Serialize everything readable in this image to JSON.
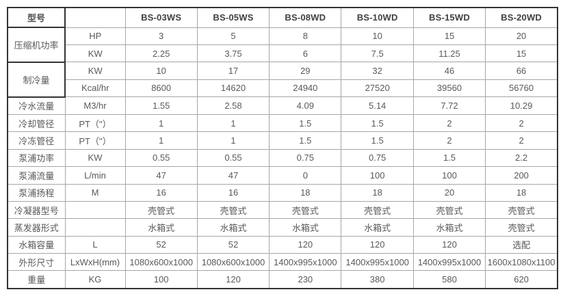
{
  "table": {
    "header": {
      "model_label": "型号",
      "unit_label": "",
      "models": [
        "BS-03WS",
        "BS-05WS",
        "BS-08WD",
        "BS-10WD",
        "BS-15WD",
        "BS-20WD"
      ]
    },
    "rows": [
      {
        "label": "压缩机功率",
        "rowspan": 2,
        "heavy": true,
        "unit": "HP",
        "values": [
          "3",
          "5",
          "8",
          "10",
          "15",
          "20"
        ]
      },
      {
        "unit": "KW",
        "values": [
          "2.25",
          "3.75",
          "6",
          "7.5",
          "11.25",
          "15"
        ]
      },
      {
        "label": "制冷量",
        "rowspan": 2,
        "heavy": true,
        "unit": "KW",
        "values": [
          "10",
          "17",
          "29",
          "32",
          "46",
          "66"
        ]
      },
      {
        "unit": "Kcal/hr",
        "values": [
          "8600",
          "14620",
          "24940",
          "27520",
          "39560",
          "56760"
        ]
      },
      {
        "label": "冷水流量",
        "unit": "M3/hr",
        "values": [
          "1.55",
          "2.58",
          "4.09",
          "5.14",
          "7.72",
          "10.29"
        ]
      },
      {
        "label": "冷却管径",
        "unit": "PT（\"）",
        "values": [
          "1",
          "1",
          "1.5",
          "1.5",
          "2",
          "2"
        ]
      },
      {
        "label": "冷冻管径",
        "unit": "PT（\"）",
        "values": [
          "1",
          "1",
          "1.5",
          "1.5",
          "2",
          "2"
        ]
      },
      {
        "label": "泵浦功率",
        "unit": "KW",
        "values": [
          "0.55",
          "0.55",
          "0.75",
          "0.75",
          "1.5",
          "2.2"
        ]
      },
      {
        "label": "泵浦流量",
        "unit": "L/min",
        "values": [
          "47",
          "47",
          "0",
          "100",
          "100",
          "200"
        ]
      },
      {
        "label": "泵浦扬程",
        "unit": "M",
        "values": [
          "16",
          "16",
          "18",
          "18",
          "20",
          "18"
        ]
      },
      {
        "label": "冷凝器型号",
        "unit": "",
        "values": [
          "壳管式",
          "壳管式",
          "壳管式",
          "壳管式",
          "壳管式",
          "壳管式"
        ]
      },
      {
        "label": "蒸发器形式",
        "unit": "",
        "values": [
          "水箱式",
          "水箱式",
          "水箱式",
          "水箱式",
          "水箱式",
          "壳管式"
        ]
      },
      {
        "label": "水箱容量",
        "unit": "L",
        "values": [
          "52",
          "52",
          "120",
          "120",
          "120",
          "选配"
        ]
      },
      {
        "label": "外形尺寸",
        "unit": "LxWxH(mm)",
        "values": [
          "1080x600x1000",
          "1080x600x1000",
          "1400x995x1000",
          "1400x995x1000",
          "1400x995x1000",
          "1600x1080x1100"
        ]
      },
      {
        "label": "重量",
        "unit": "KG",
        "values": [
          "100",
          "120",
          "230",
          "380",
          "580",
          "620"
        ]
      }
    ],
    "colors": {
      "background": "#ffffff",
      "text": "#595959",
      "header_text": "#404040",
      "border_light": "#a6a6a6",
      "border_dark": "#333333"
    }
  }
}
